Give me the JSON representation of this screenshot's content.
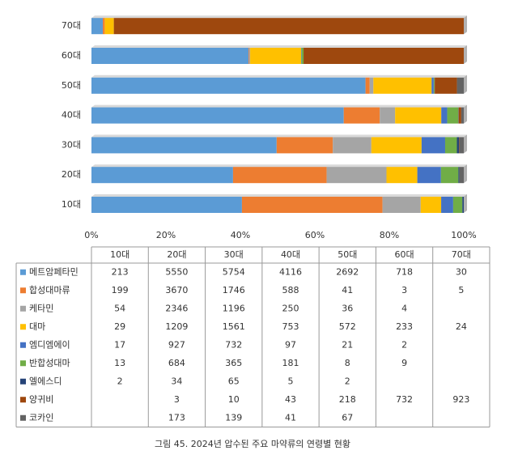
{
  "chart_data": {
    "type": "stacked-bar-100",
    "orientation": "horizontal",
    "categories": [
      "10대",
      "20대",
      "30대",
      "40대",
      "50대",
      "60대",
      "70대"
    ],
    "series": [
      {
        "name": "메트암페타민",
        "color": "#5b9bd5",
        "values": [
          213,
          5550,
          5754,
          4116,
          2692,
          718,
          30
        ]
      },
      {
        "name": "합성대마류",
        "color": "#ed7d31",
        "values": [
          199,
          3670,
          1746,
          588,
          41,
          3,
          5
        ]
      },
      {
        "name": "케타민",
        "color": "#a5a5a5",
        "values": [
          54,
          2346,
          1196,
          250,
          36,
          4,
          null
        ]
      },
      {
        "name": "대마",
        "color": "#ffc000",
        "values": [
          29,
          1209,
          1561,
          753,
          572,
          233,
          24
        ]
      },
      {
        "name": "엠디엠에이",
        "color": "#4472c4",
        "values": [
          17,
          927,
          732,
          97,
          21,
          2,
          null
        ]
      },
      {
        "name": "반합성대마",
        "color": "#70ad47",
        "values": [
          13,
          684,
          365,
          181,
          8,
          9,
          null
        ]
      },
      {
        "name": "엘에스디",
        "color": "#264478",
        "values": [
          2,
          34,
          65,
          5,
          2,
          null,
          null
        ]
      },
      {
        "name": "양귀비",
        "color": "#9e480e",
        "values": [
          null,
          3,
          10,
          43,
          218,
          732,
          923
        ]
      },
      {
        "name": "코카인",
        "color": "#636363",
        "values": [
          null,
          173,
          139,
          41,
          67,
          null,
          null
        ]
      }
    ],
    "xlim": [
      0,
      100
    ],
    "xticks": [
      {
        "value": 0,
        "label": "0%"
      },
      {
        "value": 20,
        "label": "20%"
      },
      {
        "value": 40,
        "label": "40%"
      },
      {
        "value": 60,
        "label": "60%"
      },
      {
        "value": 80,
        "label": "80%"
      },
      {
        "value": 100,
        "label": "100%"
      }
    ],
    "caption": "그림 45. 2024년 압수된 주요 마약류의 연령별 현황"
  }
}
